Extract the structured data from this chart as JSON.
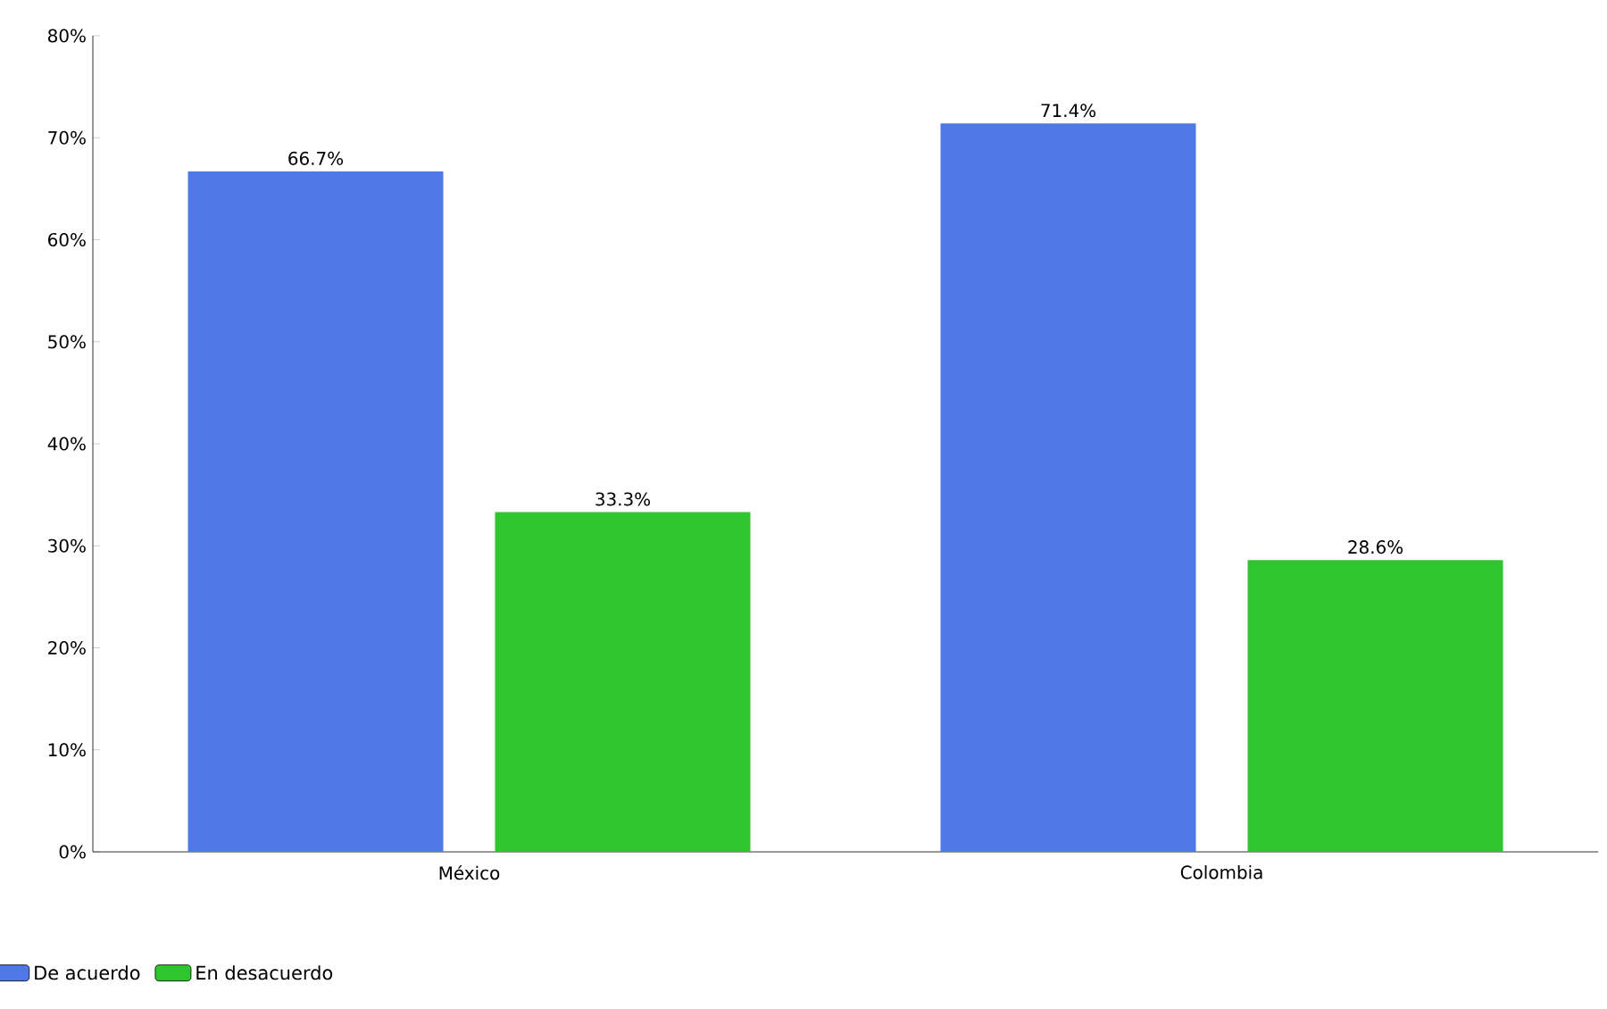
{
  "chart_data": {
    "type": "bar",
    "categories": [
      "México",
      "Colombia"
    ],
    "series": [
      {
        "name": "De acuerdo",
        "color": "#4f78e6",
        "values": [
          66.7,
          71.4
        ],
        "value_labels": [
          "66.7%",
          "71.4%"
        ]
      },
      {
        "name": "En desacuerdo",
        "color": "#2ec52e",
        "values": [
          33.3,
          28.6
        ],
        "value_labels": [
          "33.3%",
          "28.6%"
        ]
      }
    ],
    "ylim": [
      0,
      80
    ],
    "yticks": [
      {
        "value": 0,
        "label": "0%"
      },
      {
        "value": 10,
        "label": "10%"
      },
      {
        "value": 20,
        "label": "20%"
      },
      {
        "value": 30,
        "label": "30%"
      },
      {
        "value": 40,
        "label": "40%"
      },
      {
        "value": 50,
        "label": "50%"
      },
      {
        "value": 60,
        "label": "60%"
      },
      {
        "value": 70,
        "label": "70%"
      },
      {
        "value": 80,
        "label": "80%"
      }
    ],
    "grid": false,
    "legend": "bottom left"
  }
}
